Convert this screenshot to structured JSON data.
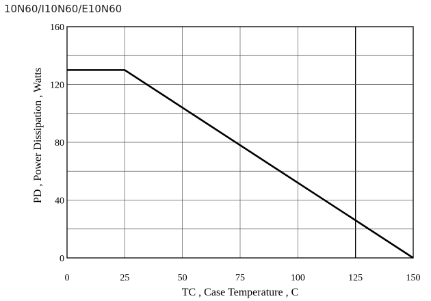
{
  "header": {
    "text": "10N60/I10N60/E10N60"
  },
  "chart_data": {
    "type": "line",
    "xlabel": "TC , Case Temperature , C",
    "ylabel": "PD , Power Dissipation ,  Watts",
    "xlim": [
      0,
      150
    ],
    "ylim": [
      0,
      160
    ],
    "x_ticks": [
      0,
      25,
      50,
      75,
      100,
      125,
      150
    ],
    "y_ticks": [
      0,
      40,
      80,
      120,
      160
    ],
    "y_grid_step": 20,
    "grid": true,
    "series": [
      {
        "x": [
          0,
          25,
          150
        ],
        "y": [
          130,
          130,
          0
        ]
      }
    ]
  }
}
